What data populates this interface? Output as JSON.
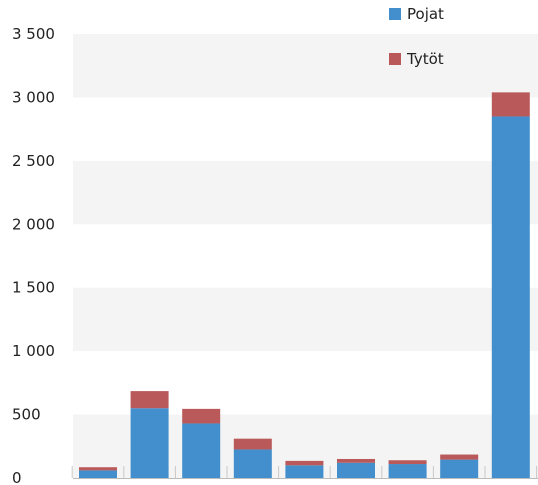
{
  "chart_data": {
    "type": "bar",
    "stacked": true,
    "categories": [
      "",
      "",
      "",
      "",
      "",
      "",
      "",
      "",
      ""
    ],
    "series": [
      {
        "name": "Pojat",
        "color": "#438fcd",
        "values": [
          60,
          550,
          430,
          225,
          100,
          120,
          110,
          145,
          2850
        ]
      },
      {
        "name": "Tytöt",
        "color": "#b9595a",
        "values": [
          25,
          135,
          115,
          85,
          35,
          30,
          30,
          40,
          190
        ]
      }
    ],
    "ylim": [
      0,
      3500
    ],
    "yticks": [
      0,
      500,
      1000,
      1500,
      2000,
      2500,
      3000,
      3500
    ],
    "ytick_labels": [
      "0",
      "500",
      "1 000",
      "1 500",
      "2 000",
      "2 500",
      "3 000",
      "3 500"
    ],
    "grid": "alternating-bands",
    "legend_position": "top-right",
    "title": "",
    "xlabel": "",
    "ylabel": ""
  }
}
